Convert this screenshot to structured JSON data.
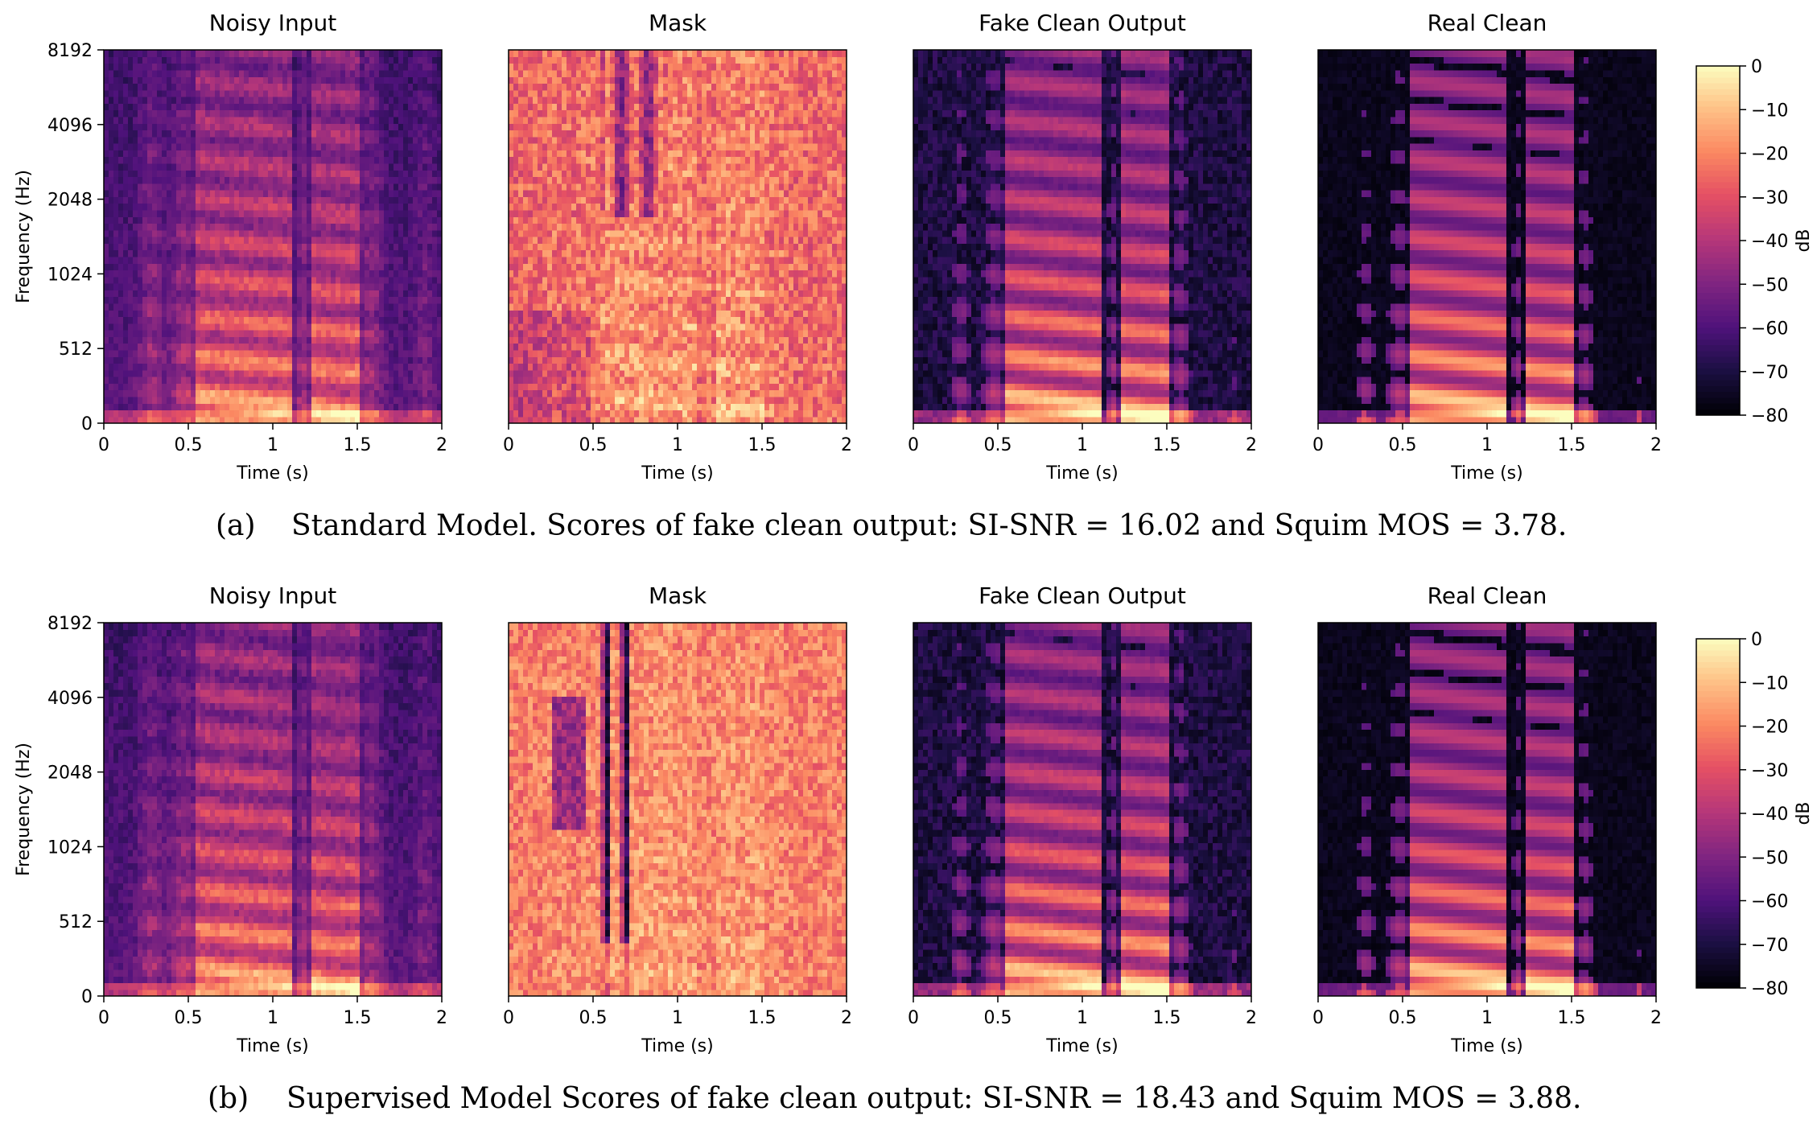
{
  "chart_data": [
    {
      "type": "heatmap",
      "row": "a",
      "caption_label": "(a)",
      "caption_text": "Standard Model. Scores of fake clean output: SI-SNR = 16.02 and Squim MOS = 3.78.",
      "panels": [
        {
          "title": "Noisy Input",
          "kind": "noisy"
        },
        {
          "title": "Mask",
          "kind": "mask_a"
        },
        {
          "title": "Fake Clean Output",
          "kind": "fake"
        },
        {
          "title": "Real Clean",
          "kind": "clean"
        }
      ],
      "xlabel": "Time (s)",
      "xticks": [
        "0",
        "0.5",
        "1",
        "1.5",
        "2"
      ],
      "ylabel": "Frequency (Hz)",
      "yticks": [
        "8192",
        "4096",
        "2048",
        "1024",
        "512",
        "0"
      ],
      "colorbar": {
        "label": "dB",
        "ticks": [
          "0",
          "−10",
          "−20",
          "−30",
          "−40",
          "−50",
          "−60",
          "−70",
          "−80"
        ],
        "range": [
          -80,
          0
        ]
      },
      "xlim": [
        0,
        2
      ],
      "colormap": "magma"
    },
    {
      "type": "heatmap",
      "row": "b",
      "caption_label": "(b)",
      "caption_text": "Supervised Model Scores of fake clean output: SI-SNR = 18.43 and Squim MOS = 3.88.",
      "panels": [
        {
          "title": "Noisy Input",
          "kind": "noisy"
        },
        {
          "title": "Mask",
          "kind": "mask_b"
        },
        {
          "title": "Fake Clean Output",
          "kind": "fake"
        },
        {
          "title": "Real Clean",
          "kind": "clean"
        }
      ],
      "xlabel": "Time (s)",
      "xticks": [
        "0",
        "0.5",
        "1",
        "1.5",
        "2"
      ],
      "ylabel": "Frequency (Hz)",
      "yticks": [
        "8192",
        "4096",
        "2048",
        "1024",
        "512",
        "0"
      ],
      "colorbar": {
        "label": "dB",
        "ticks": [
          "0",
          "−10",
          "−20",
          "−30",
          "−40",
          "−50",
          "−60",
          "−70",
          "−80"
        ],
        "range": [
          -80,
          0
        ]
      },
      "xlim": [
        0,
        2
      ],
      "colormap": "magma"
    }
  ]
}
